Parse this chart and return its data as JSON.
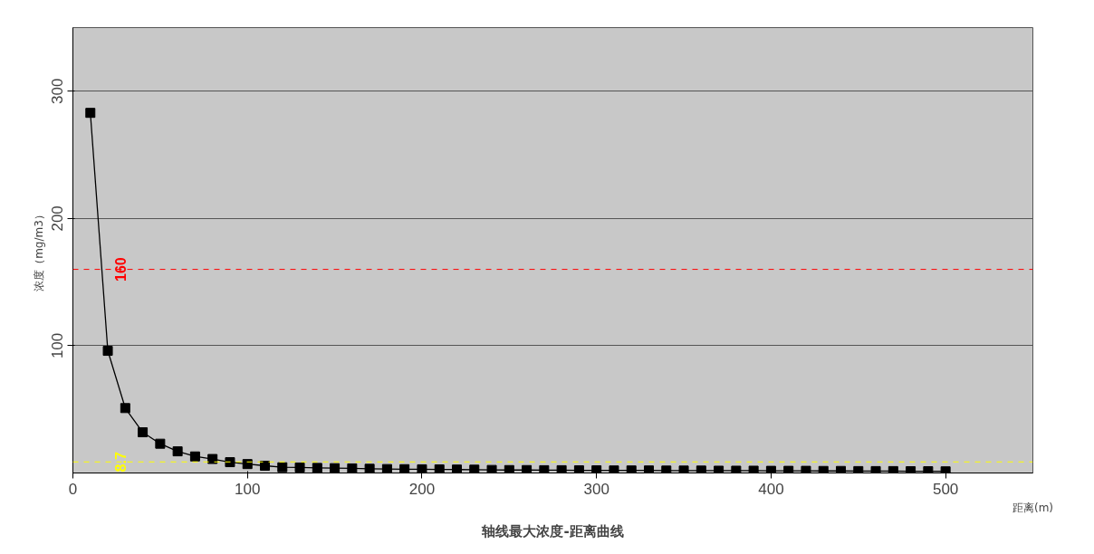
{
  "chart_data": {
    "type": "line",
    "title": "轴线最大浓度-距离曲线",
    "xlabel": "距离(m)",
    "ylabel": "浓度（mg/m3）",
    "x": [
      10,
      20,
      30,
      40,
      50,
      60,
      70,
      80,
      90,
      100,
      110,
      120,
      130,
      140,
      150,
      160,
      170,
      180,
      190,
      200,
      210,
      220,
      230,
      240,
      250,
      260,
      270,
      280,
      290,
      300,
      310,
      320,
      330,
      340,
      350,
      360,
      370,
      380,
      390,
      400,
      410,
      420,
      430,
      440,
      450,
      460,
      470,
      480,
      490,
      500
    ],
    "series": [
      {
        "color": "#000000",
        "values": [
          283,
          96,
          51,
          32,
          23,
          17,
          13,
          11,
          8.5,
          7,
          5.7,
          4.5,
          4.3,
          4,
          3.8,
          3.6,
          3.3,
          3.1,
          3,
          2.9,
          2.8,
          2.7,
          2.6,
          2.4,
          2.3,
          2.3,
          2.2,
          2.2,
          2.1,
          2.1,
          2,
          2,
          2,
          1.9,
          1.9,
          1.9,
          1.8,
          1.8,
          1.8,
          1.7,
          1.7,
          1.7,
          1.6,
          1.6,
          1.5,
          1.5,
          1.5,
          1.4,
          1.4,
          1.3
        ]
      }
    ],
    "xlim": [
      0,
      550
    ],
    "ylim": [
      0,
      350
    ],
    "xticks": [
      0,
      100,
      200,
      300,
      400,
      500
    ],
    "yticks": [
      100,
      200,
      300
    ],
    "ref_lines": [
      {
        "axis": "y",
        "value": 160,
        "label": "160",
        "color": "#ff0000",
        "line_style": "dashed"
      },
      {
        "axis": "y",
        "value": 8.7,
        "label": "8.7",
        "color": "#ffff00",
        "line_style": "dashed"
      }
    ],
    "grid": "y",
    "marker": "square",
    "line_style": "solid"
  }
}
